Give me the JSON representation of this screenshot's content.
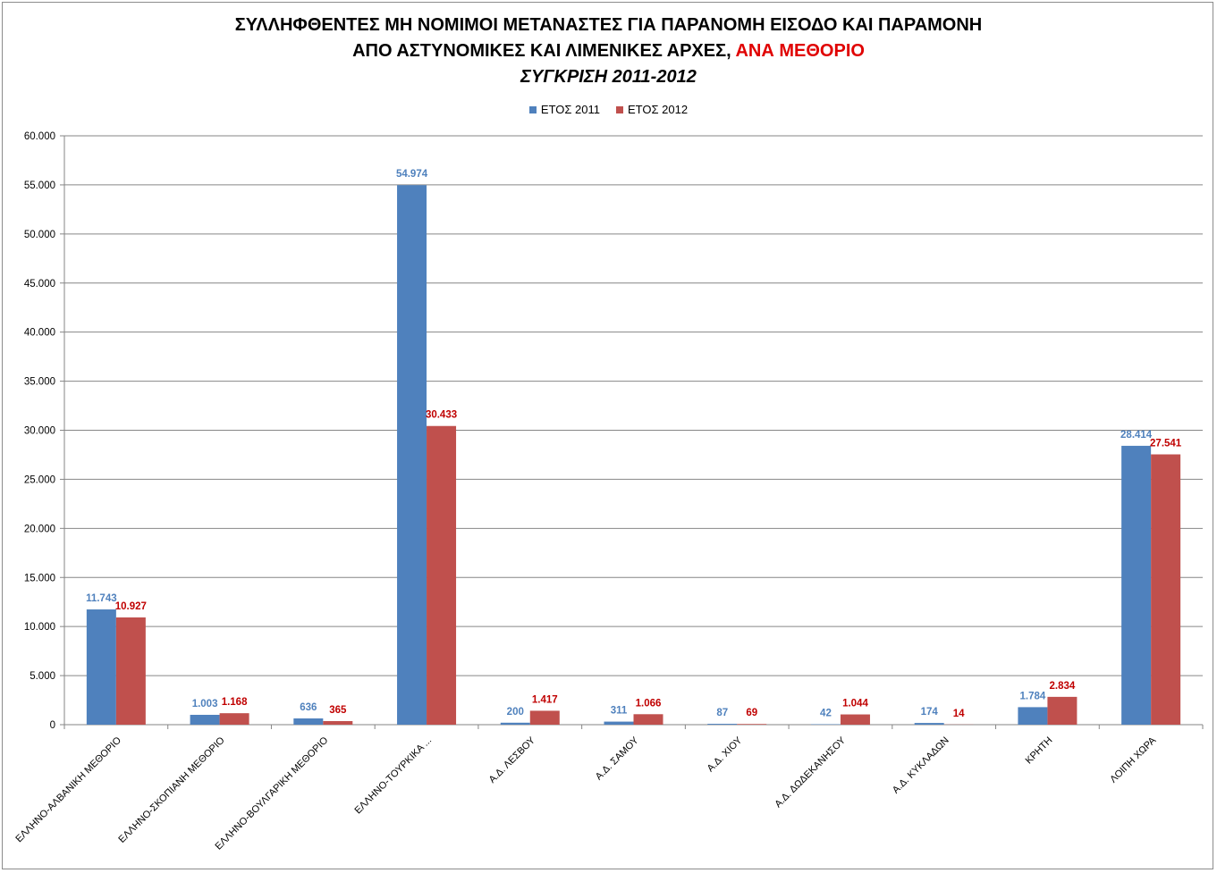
{
  "title_line1": "ΣΥΛΛΗΦΘΕΝΤΕΣ ΜΗ ΝΟΜΙΜΟΙ ΜΕΤΑΝΑΣΤΕΣ ΓΙΑ ΠΑΡΑΝΟΜΗ ΕΙΣΟΔΟ ΚΑΙ ΠΑΡΑΜΟΝΗ",
  "title_line2_black": "ΑΠΟ ΑΣΤΥΝΟΜΙΚΕΣ ΚΑΙ ΛΙΜΕΝΙΚΕΣ ΑΡΧΕΣ, ",
  "title_line2_red": "ΑΝΑ ΜΕΘΟΡΙΟ",
  "title_line3": "ΣΥΓΚΡΙΣΗ 2011-2012",
  "colors": {
    "series_2011": "#4f81bd",
    "series_2012": "#c0504d",
    "label_2011": "#4f81bd",
    "label_2012": "#c00000",
    "title_accent": "#e00000"
  },
  "chart_data": {
    "type": "bar",
    "legend_position": "top",
    "grid": true,
    "ylim": [
      0,
      60000
    ],
    "yticks": [
      0,
      5000,
      10000,
      15000,
      20000,
      25000,
      30000,
      35000,
      40000,
      45000,
      50000,
      55000,
      60000
    ],
    "ytick_labels": [
      "0",
      "5.000",
      "10.000",
      "15.000",
      "20.000",
      "25.000",
      "30.000",
      "35.000",
      "40.000",
      "45.000",
      "50.000",
      "55.000",
      "60.000"
    ],
    "categories": [
      "ΕΛΛΗΝΟ-ΑΛΒΑΝΙΚΗ  ΜΕΘΟΡΙΟ",
      "ΕΛΛΗΝΟ-ΣΚΟΠΙΑΝΗ  ΜΕΘΟΡΙΟ",
      "ΕΛΛΗΝΟ-ΒΟΥΛΓΑΡΙΚΗ  ΜΕΘΟΡΙΟ",
      "ΕΛΛΗΝΟ-ΤΟΥΡΚΙΚΑ ...",
      "Α.Δ. ΛΕΣΒΟΥ",
      "Α.Δ. ΣΑΜΟΥ",
      "Α.Δ. ΧΙΟΥ",
      "Α.Δ. ΔΩΔΕΚΑΝΗΣΟΥ",
      "Α.Δ. ΚΥΚΛΑΔΩΝ",
      "ΚΡΗΤΗ",
      "ΛΟΙΠΗ ΧΩΡΑ"
    ],
    "series": [
      {
        "name": "ΕΤΟΣ 2011",
        "values": [
          11743,
          1003,
          636,
          54974,
          200,
          311,
          87,
          42,
          174,
          1784,
          28414
        ],
        "labels": [
          "11.743",
          "1.003",
          "636",
          "54.974",
          "200",
          "311",
          "87",
          "42",
          "174",
          "1.784",
          "28.414"
        ]
      },
      {
        "name": "ΕΤΟΣ 2012",
        "values": [
          10927,
          1168,
          365,
          30433,
          1417,
          1066,
          69,
          1044,
          14,
          2834,
          27541
        ],
        "labels": [
          "10.927",
          "1.168",
          "365",
          "30.433",
          "1.417",
          "1.066",
          "69",
          "1.044",
          "14",
          "2.834",
          "27.541"
        ]
      }
    ]
  }
}
